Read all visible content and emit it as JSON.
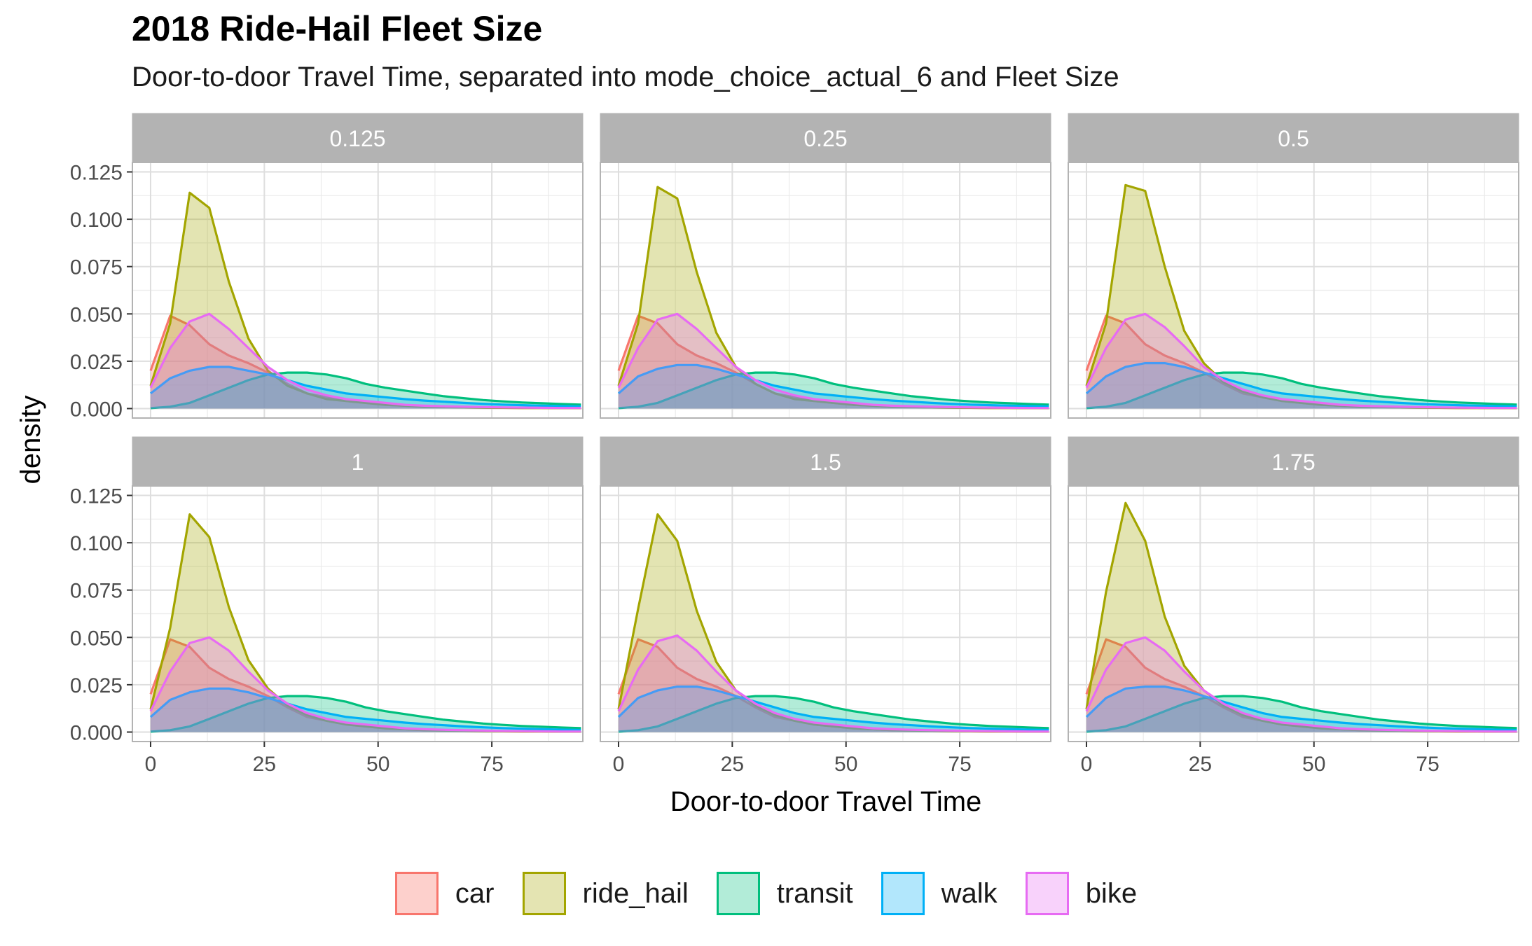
{
  "title": "2018 Ride-Hail Fleet Size",
  "subtitle": "Door-to-door Travel Time, separated into mode_choice_actual_6 and Fleet Size",
  "chart_data": {
    "type": "area",
    "subtype": "faceted density plot",
    "xlabel": "Door-to-door Travel Time",
    "ylabel": "density",
    "xlim": [
      -4,
      95
    ],
    "ylim": [
      -0.005,
      0.13
    ],
    "x_ticks": [
      0,
      25,
      50,
      75
    ],
    "x_tick_labels": [
      "0",
      "25",
      "50",
      "75"
    ],
    "y_ticks": [
      0,
      0.025,
      0.05,
      0.075,
      0.1,
      0.125
    ],
    "y_tick_labels": [
      "0.000",
      "0.025",
      "0.050",
      "0.075",
      "0.100",
      "0.125"
    ],
    "grid": true,
    "legend_position": "bottom",
    "facet_layout": "2 rows x 3 columns",
    "x": [
      0,
      4.3,
      8.6,
      12.9,
      17.2,
      21.5,
      25.8,
      30.1,
      34.4,
      38.7,
      43,
      47.3,
      51.6,
      55.9,
      60.2,
      64.5,
      68.8,
      73.1,
      77.4,
      81.7,
      86,
      90.3,
      94.6
    ],
    "series_styles": [
      {
        "name": "car",
        "line": "#F8766D",
        "fill": "#FDD0CC"
      },
      {
        "name": "ride_hail",
        "line": "#A3A500",
        "fill": "#E4E4B2"
      },
      {
        "name": "transit",
        "line": "#00BF7D",
        "fill": "#B2ECD8"
      },
      {
        "name": "walk",
        "line": "#00B0F6",
        "fill": "#B2E7FC"
      },
      {
        "name": "bike",
        "line": "#E76BF3",
        "fill": "#F8D2FB"
      }
    ],
    "facets": [
      {
        "label": "0.125",
        "series": [
          {
            "name": "car",
            "values": [
              0.02,
              0.049,
              0.044,
              0.034,
              0.028,
              0.024,
              0.019,
              0.013,
              0.008,
              0.006,
              0.004,
              0.003,
              0.002,
              0.0015,
              0.001,
              0.0008,
              0.0006,
              0.0005,
              0.0004,
              0.0003,
              0.0003,
              0.0002,
              0.0002
            ]
          },
          {
            "name": "ride_hail",
            "values": [
              0.012,
              0.045,
              0.114,
              0.106,
              0.067,
              0.037,
              0.02,
              0.012,
              0.008,
              0.005,
              0.004,
              0.003,
              0.002,
              0.0015,
              0.001,
              0.0008,
              0.0006,
              0.0005,
              0.0004,
              0.0003,
              0.0003,
              0.0002,
              0.0002
            ]
          },
          {
            "name": "transit",
            "values": [
              0.0002,
              0.001,
              0.003,
              0.007,
              0.011,
              0.015,
              0.018,
              0.019,
              0.019,
              0.018,
              0.016,
              0.013,
              0.011,
              0.0095,
              0.008,
              0.0065,
              0.0055,
              0.0045,
              0.0038,
              0.0032,
              0.0028,
              0.0024,
              0.0021
            ]
          },
          {
            "name": "walk",
            "values": [
              0.008,
              0.016,
              0.02,
              0.022,
              0.022,
              0.02,
              0.018,
              0.015,
              0.012,
              0.01,
              0.008,
              0.007,
              0.006,
              0.005,
              0.0042,
              0.0036,
              0.003,
              0.0025,
              0.0021,
              0.0018,
              0.0015,
              0.0013,
              0.0011
            ]
          },
          {
            "name": "bike",
            "values": [
              0.011,
              0.032,
              0.046,
              0.05,
              0.042,
              0.032,
              0.022,
              0.015,
              0.01,
              0.007,
              0.005,
              0.004,
              0.003,
              0.002,
              0.0015,
              0.0012,
              0.001,
              0.0008,
              0.0006,
              0.0005,
              0.0004,
              0.0003,
              0.0003
            ]
          }
        ]
      },
      {
        "label": "0.25",
        "series": [
          {
            "name": "car",
            "values": [
              0.02,
              0.049,
              0.045,
              0.034,
              0.028,
              0.024,
              0.019,
              0.013,
              0.008,
              0.006,
              0.004,
              0.003,
              0.002,
              0.0015,
              0.001,
              0.0008,
              0.0006,
              0.0005,
              0.0004,
              0.0003,
              0.0003,
              0.0002,
              0.0002
            ]
          },
          {
            "name": "ride_hail",
            "values": [
              0.012,
              0.045,
              0.117,
              0.111,
              0.072,
              0.04,
              0.022,
              0.013,
              0.008,
              0.005,
              0.004,
              0.003,
              0.002,
              0.0015,
              0.001,
              0.0008,
              0.0006,
              0.0005,
              0.0004,
              0.0003,
              0.0003,
              0.0002,
              0.0002
            ]
          },
          {
            "name": "transit",
            "values": [
              0.0002,
              0.001,
              0.003,
              0.007,
              0.011,
              0.015,
              0.018,
              0.019,
              0.019,
              0.018,
              0.016,
              0.013,
              0.011,
              0.0095,
              0.008,
              0.0065,
              0.0055,
              0.0045,
              0.0038,
              0.0032,
              0.0028,
              0.0024,
              0.0021
            ]
          },
          {
            "name": "walk",
            "values": [
              0.008,
              0.017,
              0.021,
              0.023,
              0.023,
              0.021,
              0.018,
              0.015,
              0.012,
              0.01,
              0.008,
              0.007,
              0.006,
              0.005,
              0.0042,
              0.0036,
              0.003,
              0.0025,
              0.0021,
              0.0018,
              0.0015,
              0.0013,
              0.0011
            ]
          },
          {
            "name": "bike",
            "values": [
              0.011,
              0.032,
              0.047,
              0.05,
              0.042,
              0.032,
              0.022,
              0.015,
              0.01,
              0.007,
              0.005,
              0.004,
              0.003,
              0.002,
              0.0015,
              0.0012,
              0.001,
              0.0008,
              0.0006,
              0.0005,
              0.0004,
              0.0003,
              0.0003
            ]
          }
        ]
      },
      {
        "label": "0.5",
        "series": [
          {
            "name": "car",
            "values": [
              0.02,
              0.049,
              0.045,
              0.034,
              0.028,
              0.024,
              0.019,
              0.013,
              0.008,
              0.006,
              0.004,
              0.003,
              0.002,
              0.0015,
              0.001,
              0.0008,
              0.0006,
              0.0005,
              0.0004,
              0.0003,
              0.0003,
              0.0002,
              0.0002
            ]
          },
          {
            "name": "ride_hail",
            "values": [
              0.012,
              0.045,
              0.118,
              0.115,
              0.075,
              0.041,
              0.024,
              0.014,
              0.009,
              0.006,
              0.004,
              0.003,
              0.002,
              0.0015,
              0.001,
              0.0008,
              0.0006,
              0.0005,
              0.0004,
              0.0003,
              0.0003,
              0.0002,
              0.0002
            ]
          },
          {
            "name": "transit",
            "values": [
              0.0002,
              0.001,
              0.003,
              0.007,
              0.011,
              0.015,
              0.018,
              0.019,
              0.019,
              0.018,
              0.016,
              0.013,
              0.011,
              0.0095,
              0.008,
              0.0065,
              0.0055,
              0.0045,
              0.0038,
              0.0032,
              0.0028,
              0.0024,
              0.0021
            ]
          },
          {
            "name": "walk",
            "values": [
              0.008,
              0.017,
              0.022,
              0.024,
              0.024,
              0.022,
              0.019,
              0.016,
              0.013,
              0.01,
              0.008,
              0.007,
              0.006,
              0.005,
              0.0042,
              0.0036,
              0.003,
              0.0025,
              0.0021,
              0.0018,
              0.0015,
              0.0013,
              0.0011
            ]
          },
          {
            "name": "bike",
            "values": [
              0.011,
              0.032,
              0.047,
              0.05,
              0.043,
              0.033,
              0.022,
              0.015,
              0.01,
              0.007,
              0.005,
              0.004,
              0.003,
              0.002,
              0.0015,
              0.0012,
              0.001,
              0.0008,
              0.0006,
              0.0005,
              0.0004,
              0.0003,
              0.0003
            ]
          }
        ]
      },
      {
        "label": "1",
        "series": [
          {
            "name": "car",
            "values": [
              0.02,
              0.049,
              0.045,
              0.034,
              0.028,
              0.024,
              0.019,
              0.013,
              0.008,
              0.006,
              0.004,
              0.003,
              0.002,
              0.0015,
              0.001,
              0.0008,
              0.0006,
              0.0005,
              0.0004,
              0.0003,
              0.0003,
              0.0002,
              0.0002
            ]
          },
          {
            "name": "ride_hail",
            "values": [
              0.012,
              0.055,
              0.115,
              0.103,
              0.066,
              0.038,
              0.023,
              0.014,
              0.009,
              0.006,
              0.004,
              0.003,
              0.002,
              0.0015,
              0.001,
              0.0008,
              0.0006,
              0.0005,
              0.0004,
              0.0003,
              0.0003,
              0.0002,
              0.0002
            ]
          },
          {
            "name": "transit",
            "values": [
              0.0002,
              0.001,
              0.003,
              0.007,
              0.011,
              0.015,
              0.018,
              0.019,
              0.019,
              0.018,
              0.016,
              0.013,
              0.011,
              0.0095,
              0.008,
              0.0065,
              0.0055,
              0.0045,
              0.0038,
              0.0032,
              0.0028,
              0.0024,
              0.0021
            ]
          },
          {
            "name": "walk",
            "values": [
              0.008,
              0.017,
              0.021,
              0.023,
              0.023,
              0.021,
              0.018,
              0.015,
              0.012,
              0.01,
              0.008,
              0.007,
              0.006,
              0.005,
              0.0042,
              0.0036,
              0.003,
              0.0025,
              0.0021,
              0.0018,
              0.0015,
              0.0013,
              0.0011
            ]
          },
          {
            "name": "bike",
            "values": [
              0.011,
              0.032,
              0.047,
              0.05,
              0.043,
              0.032,
              0.022,
              0.015,
              0.01,
              0.007,
              0.005,
              0.004,
              0.003,
              0.002,
              0.0015,
              0.0012,
              0.001,
              0.0008,
              0.0006,
              0.0005,
              0.0004,
              0.0003,
              0.0003
            ]
          }
        ]
      },
      {
        "label": "1.5",
        "series": [
          {
            "name": "car",
            "values": [
              0.02,
              0.049,
              0.045,
              0.034,
              0.028,
              0.024,
              0.019,
              0.013,
              0.008,
              0.006,
              0.004,
              0.003,
              0.002,
              0.0015,
              0.001,
              0.0008,
              0.0006,
              0.0005,
              0.0004,
              0.0003,
              0.0003,
              0.0002,
              0.0002
            ]
          },
          {
            "name": "ride_hail",
            "values": [
              0.012,
              0.065,
              0.115,
              0.101,
              0.064,
              0.037,
              0.022,
              0.014,
              0.009,
              0.006,
              0.004,
              0.003,
              0.002,
              0.0015,
              0.001,
              0.0008,
              0.0006,
              0.0005,
              0.0004,
              0.0003,
              0.0003,
              0.0002,
              0.0002
            ]
          },
          {
            "name": "transit",
            "values": [
              0.0002,
              0.001,
              0.003,
              0.007,
              0.011,
              0.015,
              0.018,
              0.019,
              0.019,
              0.018,
              0.016,
              0.013,
              0.011,
              0.0095,
              0.008,
              0.0065,
              0.0055,
              0.0045,
              0.0038,
              0.0032,
              0.0028,
              0.0024,
              0.0021
            ]
          },
          {
            "name": "walk",
            "values": [
              0.008,
              0.018,
              0.022,
              0.024,
              0.024,
              0.022,
              0.019,
              0.016,
              0.013,
              0.01,
              0.008,
              0.007,
              0.006,
              0.005,
              0.0042,
              0.0036,
              0.003,
              0.0025,
              0.0021,
              0.0018,
              0.0015,
              0.0013,
              0.0011
            ]
          },
          {
            "name": "bike",
            "values": [
              0.011,
              0.033,
              0.048,
              0.051,
              0.043,
              0.032,
              0.022,
              0.015,
              0.01,
              0.007,
              0.005,
              0.004,
              0.003,
              0.002,
              0.0015,
              0.0012,
              0.001,
              0.0008,
              0.0006,
              0.0005,
              0.0004,
              0.0003,
              0.0003
            ]
          }
        ]
      },
      {
        "label": "1.75",
        "series": [
          {
            "name": "car",
            "values": [
              0.02,
              0.049,
              0.045,
              0.034,
              0.028,
              0.024,
              0.019,
              0.013,
              0.008,
              0.006,
              0.004,
              0.003,
              0.002,
              0.0015,
              0.001,
              0.0008,
              0.0006,
              0.0005,
              0.0004,
              0.0003,
              0.0003,
              0.0002,
              0.0002
            ]
          },
          {
            "name": "ride_hail",
            "values": [
              0.012,
              0.074,
              0.121,
              0.101,
              0.061,
              0.035,
              0.022,
              0.014,
              0.009,
              0.006,
              0.004,
              0.003,
              0.002,
              0.0015,
              0.001,
              0.0008,
              0.0006,
              0.0005,
              0.0004,
              0.0003,
              0.0003,
              0.0002,
              0.0002
            ]
          },
          {
            "name": "transit",
            "values": [
              0.0002,
              0.001,
              0.003,
              0.007,
              0.011,
              0.015,
              0.018,
              0.019,
              0.019,
              0.018,
              0.016,
              0.013,
              0.011,
              0.0095,
              0.008,
              0.0065,
              0.0055,
              0.0045,
              0.0038,
              0.0032,
              0.0028,
              0.0024,
              0.0021
            ]
          },
          {
            "name": "walk",
            "values": [
              0.008,
              0.018,
              0.023,
              0.024,
              0.024,
              0.022,
              0.019,
              0.016,
              0.013,
              0.01,
              0.008,
              0.007,
              0.006,
              0.005,
              0.0042,
              0.0036,
              0.003,
              0.0025,
              0.0021,
              0.0018,
              0.0015,
              0.0013,
              0.0011
            ]
          },
          {
            "name": "bike",
            "values": [
              0.011,
              0.033,
              0.047,
              0.05,
              0.043,
              0.032,
              0.022,
              0.015,
              0.01,
              0.007,
              0.005,
              0.004,
              0.003,
              0.002,
              0.0015,
              0.0012,
              0.001,
              0.0008,
              0.0006,
              0.0005,
              0.0004,
              0.0003,
              0.0003
            ]
          }
        ]
      }
    ]
  },
  "legend": {
    "items": [
      {
        "label": "car"
      },
      {
        "label": "ride_hail"
      },
      {
        "label": "transit"
      },
      {
        "label": "walk"
      },
      {
        "label": "bike"
      }
    ]
  }
}
